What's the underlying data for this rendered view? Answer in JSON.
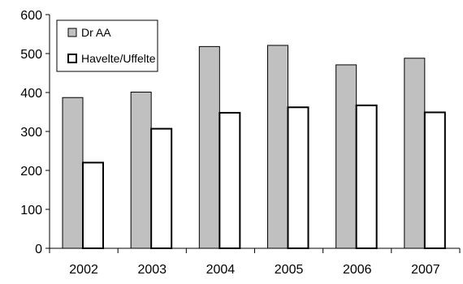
{
  "chart_data": {
    "type": "bar",
    "categories": [
      "2002",
      "2003",
      "2004",
      "2005",
      "2006",
      "2007"
    ],
    "series": [
      {
        "name": "Dr AA",
        "values": [
          387,
          401,
          518,
          521,
          471,
          488
        ],
        "fill": "#c0c0c0",
        "stroke": "#000000"
      },
      {
        "name": "Havelte/Uffelte",
        "values": [
          220,
          307,
          348,
          362,
          367,
          349
        ],
        "fill": "#ffffff",
        "stroke": "#000000"
      }
    ],
    "y_ticks": [
      "0",
      "100",
      "200",
      "300",
      "400",
      "500",
      "600"
    ],
    "ylim": [
      0,
      600
    ],
    "grid": false,
    "legend_position": "top-left",
    "title": "",
    "xlabel": "",
    "ylabel": ""
  }
}
